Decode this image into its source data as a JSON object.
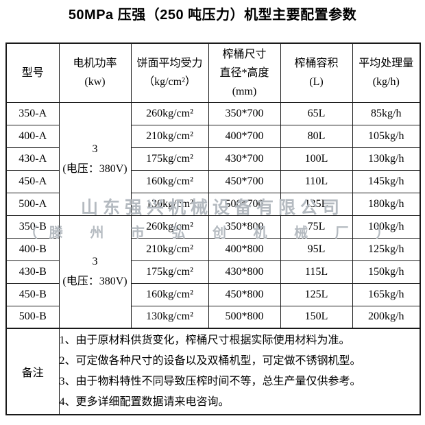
{
  "title": "50MPa 压强（250 吨压力）机型主要配置参数",
  "watermark": {
    "line1": "山东强兴机械设备有限公司",
    "line2": "（滕 州 市 弘 创 机 械 厂 ）"
  },
  "colors": {
    "text": "#000000",
    "border": "#1a1a1a",
    "watermark": "#b4bac0",
    "background": "#ffffff"
  },
  "table": {
    "columns": [
      {
        "id": "model",
        "lines": [
          "型号"
        ]
      },
      {
        "id": "power",
        "lines": [
          "电机功率",
          "(kw)"
        ]
      },
      {
        "id": "pressure",
        "lines": [
          "饼面平均受力",
          "（kg/cm²）"
        ]
      },
      {
        "id": "size",
        "lines": [
          "榨桶尺寸",
          "直径*高度",
          "(mm)"
        ]
      },
      {
        "id": "volume",
        "lines": [
          "榨桶容积",
          "(L)"
        ]
      },
      {
        "id": "capacity",
        "lines": [
          "平均处理量",
          "(kg/h)"
        ]
      }
    ],
    "groups": [
      {
        "power_lines": [
          "3",
          "(电压：380V)"
        ],
        "rows": [
          {
            "model": "350-A",
            "pressure": "260kg/cm²",
            "size": "350*700",
            "volume": "65L",
            "capacity": "85kg/h"
          },
          {
            "model": "400-A",
            "pressure": "210kg/cm²",
            "size": "400*700",
            "volume": "80L",
            "capacity": "105kg/h"
          },
          {
            "model": "430-A",
            "pressure": "175kg/cm²",
            "size": "430*700",
            "volume": "100L",
            "capacity": "130kg/h"
          },
          {
            "model": "450-A",
            "pressure": "160kg/cm²",
            "size": "450*700",
            "volume": "110L",
            "capacity": "145kg/h"
          },
          {
            "model": "500-A",
            "pressure": "130kg/cm²",
            "size": "500*700",
            "volume": "135L",
            "capacity": "180kg/h"
          }
        ]
      },
      {
        "power_lines": [
          "3",
          "(电压：380V)"
        ],
        "rows": [
          {
            "model": "350-B",
            "pressure": "260kg/cm²",
            "size": "350*800",
            "volume": "75L",
            "capacity": "100kg/h"
          },
          {
            "model": "400-B",
            "pressure": "210kg/cm²",
            "size": "400*800",
            "volume": "95L",
            "capacity": "125kg/h"
          },
          {
            "model": "430-B",
            "pressure": "175kg/cm²",
            "size": "430*800",
            "volume": "115L",
            "capacity": "150kg/h"
          },
          {
            "model": "450-B",
            "pressure": "160kg/cm²",
            "size": "450*800",
            "volume": "125L",
            "capacity": "165kg/h"
          },
          {
            "model": "500-B",
            "pressure": "130kg/cm²",
            "size": "500*800",
            "volume": "150L",
            "capacity": "200kg/h"
          }
        ]
      }
    ],
    "remarks": {
      "label": "备注",
      "items": [
        "1、由于原材料供货变化，榨桶尺寸根据实际使用材料为准。",
        "2、可定做各种尺寸的设备以及双桶机型，可定做不锈钢机型。",
        "3、由于物料特性不同导致压榨时间不等，总生产量仅供参考。",
        "4、更多详细配置数据请来电咨询。"
      ]
    }
  }
}
